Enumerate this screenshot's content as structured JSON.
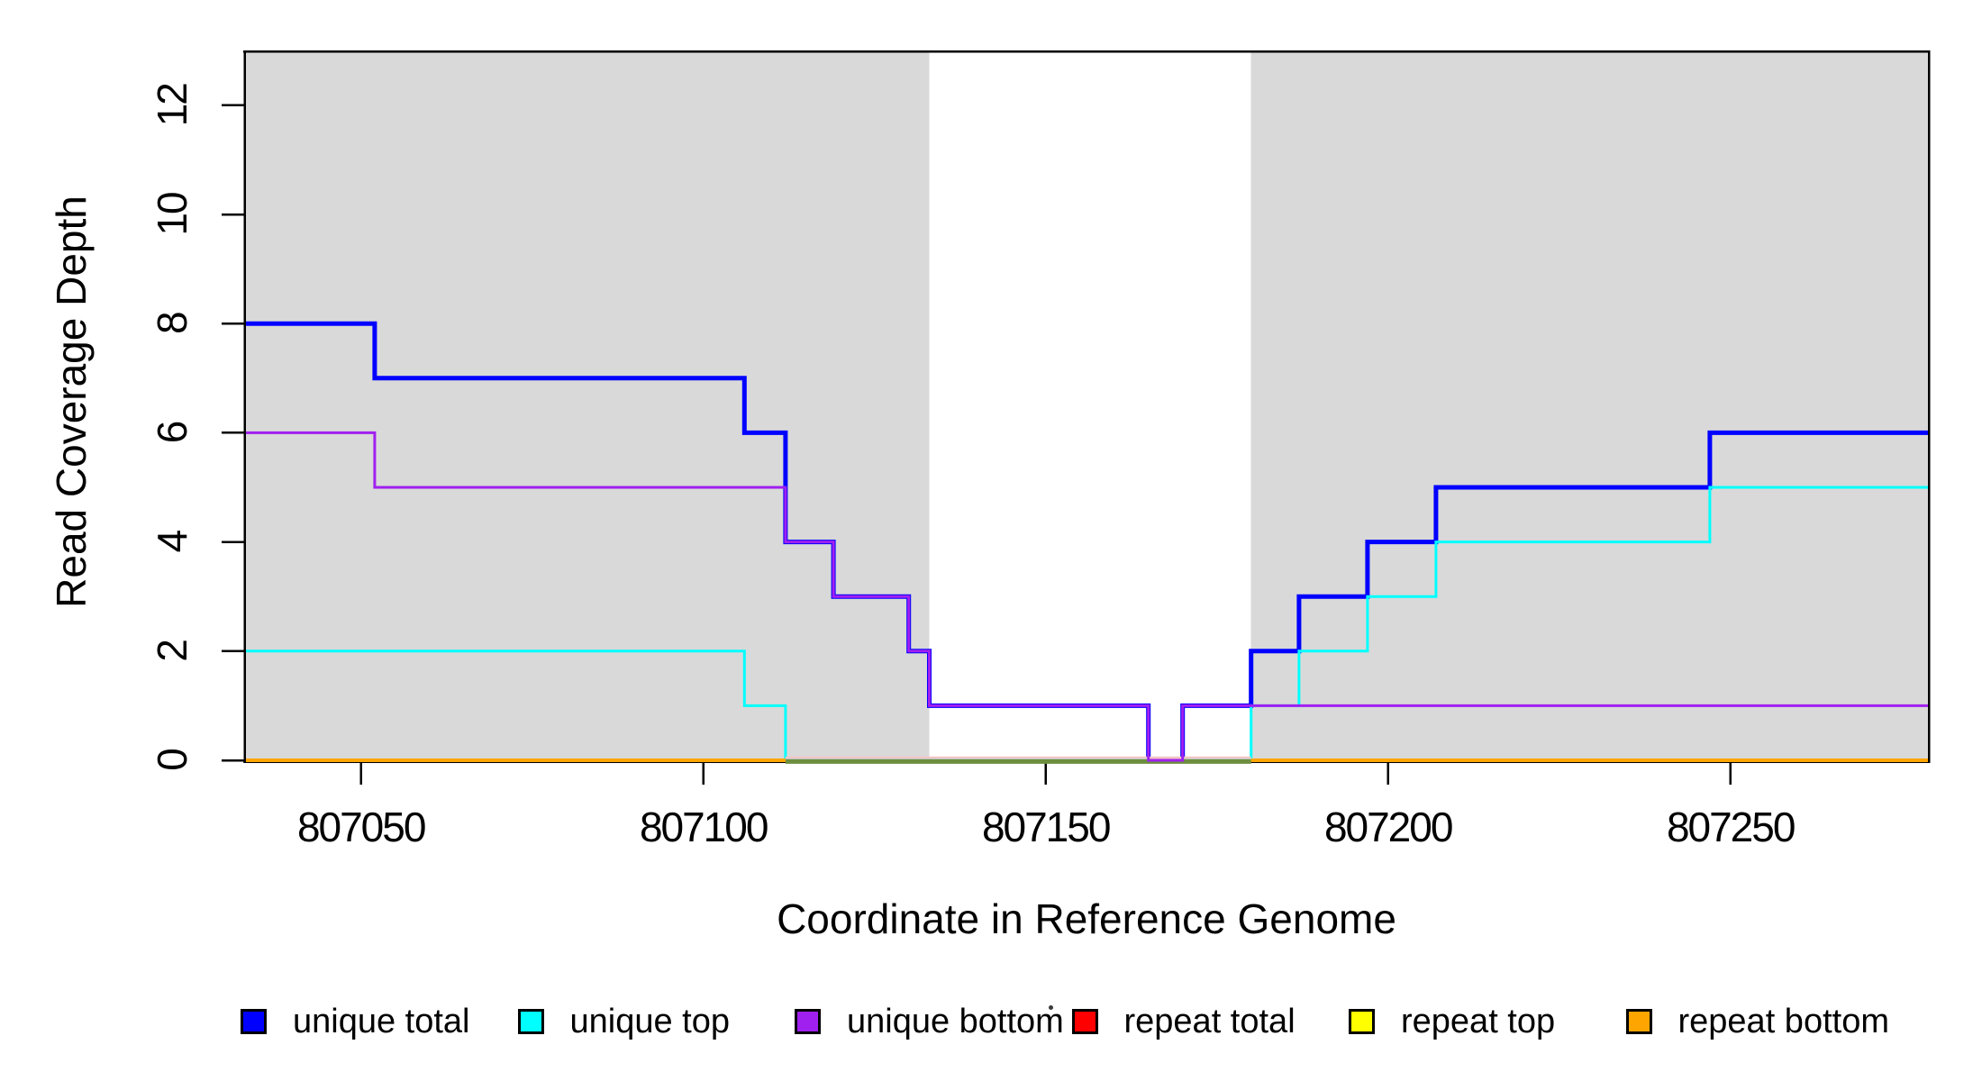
{
  "chart_data": {
    "type": "line",
    "subtype": "step-coverage-plot",
    "title": "",
    "xlabel": "Coordinate in Reference Genome",
    "ylabel": "Read Coverage Depth",
    "xlim": [
      807033,
      807279
    ],
    "ylim": [
      0,
      13
    ],
    "xticks": [
      807050,
      807100,
      807150,
      807200,
      807250
    ],
    "yticks": [
      0,
      2,
      4,
      6,
      8,
      10,
      12
    ],
    "grid": false,
    "shaded_regions": {
      "color": "#d9d9d9",
      "regions": [
        [
          807033,
          807133
        ],
        [
          807180,
          807279
        ]
      ],
      "note": "white unshaded gap from 807133 to 807180"
    },
    "series": [
      {
        "name": "unique total",
        "color": "#0000ff",
        "lwd": 5,
        "segments": [
          [
            [
              807033,
              8
            ],
            [
              807052,
              7
            ],
            [
              807106,
              6
            ],
            [
              807112,
              4
            ],
            [
              807119,
              3
            ],
            [
              807130,
              2
            ],
            [
              807133,
              1
            ],
            [
              807165,
              0
            ],
            [
              807170,
              1
            ],
            [
              807180,
              2
            ],
            [
              807187,
              3
            ],
            [
              807197,
              4
            ],
            [
              807207,
              5
            ],
            [
              807247,
              6
            ],
            [
              807279,
              6
            ]
          ]
        ]
      },
      {
        "name": "unique top",
        "color": "#00ffff",
        "lwd": 3,
        "segments": [
          [
            [
              807033,
              2
            ],
            [
              807106,
              1
            ],
            [
              807112,
              0
            ],
            [
              807180,
              1
            ],
            [
              807187,
              2
            ],
            [
              807197,
              3
            ],
            [
              807207,
              4
            ],
            [
              807247,
              5
            ],
            [
              807279,
              5
            ]
          ]
        ]
      },
      {
        "name": "unique bottom",
        "color": "#a020f0",
        "lwd": 3,
        "segments": [
          [
            [
              807033,
              6
            ],
            [
              807052,
              5
            ],
            [
              807112,
              4
            ],
            [
              807119,
              3
            ],
            [
              807130,
              2
            ],
            [
              807133,
              1
            ],
            [
              807165,
              0
            ],
            [
              807170,
              1
            ],
            [
              807279,
              1
            ]
          ]
        ]
      },
      {
        "name": "repeat total",
        "color": "#ff0000",
        "lwd": 2,
        "segments": [
          [
            [
              807033,
              0
            ],
            [
              807279,
              0
            ]
          ]
        ]
      },
      {
        "name": "repeat top",
        "color": "#ffff00",
        "lwd": 2,
        "segments": [
          [
            [
              807033,
              0
            ],
            [
              807279,
              0
            ]
          ]
        ]
      },
      {
        "name": "repeat bottom",
        "color": "#ffa500",
        "lwd": 4,
        "segments": [
          [
            [
              807033,
              0
            ],
            [
              807112,
              0
            ]
          ],
          [
            [
              807180,
              0
            ],
            [
              807279,
              0
            ]
          ]
        ]
      }
    ],
    "baseline_artifacts": [
      {
        "name": "pale-pink-baseline",
        "color": "#f2c5c5",
        "lwd": 3,
        "range": [
          807112,
          807180
        ]
      },
      {
        "name": "olive-baseline",
        "color": "#6d8e3f",
        "lwd": 5,
        "range": [
          807112,
          807180
        ]
      }
    ],
    "legend": {
      "position": "bottom",
      "items": [
        {
          "label": "unique total",
          "color": "#0000ff"
        },
        {
          "label": "unique top",
          "color": "#00ffff"
        },
        {
          "label": "unique bottom",
          "color": "#a020f0"
        },
        {
          "label": "repeat total",
          "color": "#ff0000"
        },
        {
          "label": "repeat top",
          "color": "#ffff00"
        },
        {
          "label": "repeat bottom",
          "color": "#ffa500"
        }
      ]
    },
    "artifact_dot": {
      "x": 1164,
      "y": 1116
    }
  }
}
